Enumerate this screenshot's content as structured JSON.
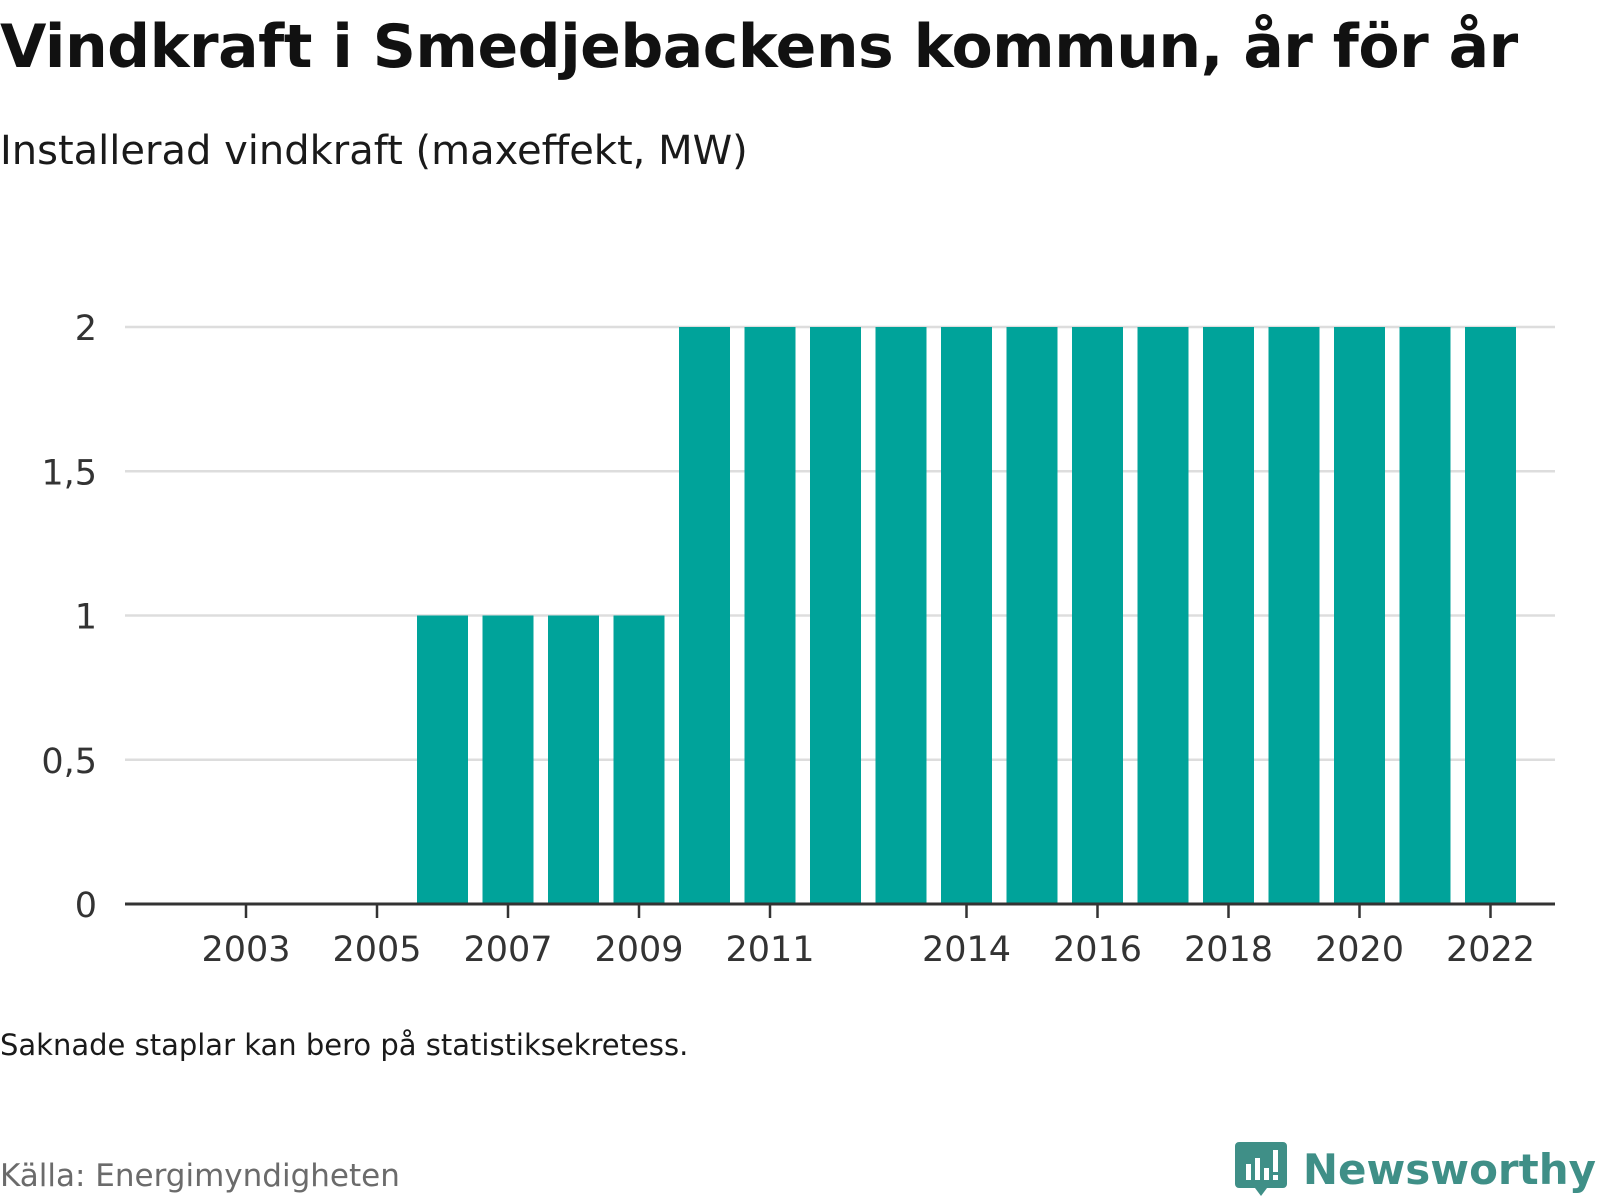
{
  "title": "Vindkraft i Smedjebackens kommun, år för år",
  "subtitle": "Installerad vindkraft (maxeffekt, MW)",
  "note": "Saknade staplar kan bero på statistiksekretess.",
  "source": "Källa: Energimyndigheten",
  "logo": {
    "text": "Newsworthy",
    "icon": "newsworthy-logo-icon",
    "color": "#3f8f87"
  },
  "colors": {
    "bar": "#00a39a",
    "grid": "#dddddd",
    "axis": "#333333",
    "tick_label": "#333333"
  },
  "chart_data": {
    "type": "bar",
    "title": "Vindkraft i Smedjebackens kommun, år för år",
    "ylabel": "Installerad vindkraft (maxeffekt, MW)",
    "xlabel": "",
    "categories": [
      "2002",
      "2003",
      "2004",
      "2005",
      "2006",
      "2007",
      "2008",
      "2009",
      "2010",
      "2011",
      "2012",
      "2013",
      "2014",
      "2015",
      "2016",
      "2017",
      "2018",
      "2019",
      "2020",
      "2021",
      "2022"
    ],
    "values": [
      0,
      0,
      0,
      0,
      1,
      1,
      1,
      1,
      2,
      2,
      2,
      2,
      2,
      2,
      2,
      2,
      2,
      2,
      2,
      2,
      2
    ],
    "x_tick_labels": [
      "2003",
      "2005",
      "2007",
      "2009",
      "2011",
      "2014",
      "2016",
      "2018",
      "2020",
      "2022"
    ],
    "y_ticks": [
      0,
      0.5,
      1,
      1.5,
      2
    ],
    "y_tick_labels": [
      "0",
      "0,5",
      "1",
      "1,5",
      "2"
    ],
    "ylim": [
      0,
      2
    ],
    "grid": true,
    "legend": "none"
  }
}
